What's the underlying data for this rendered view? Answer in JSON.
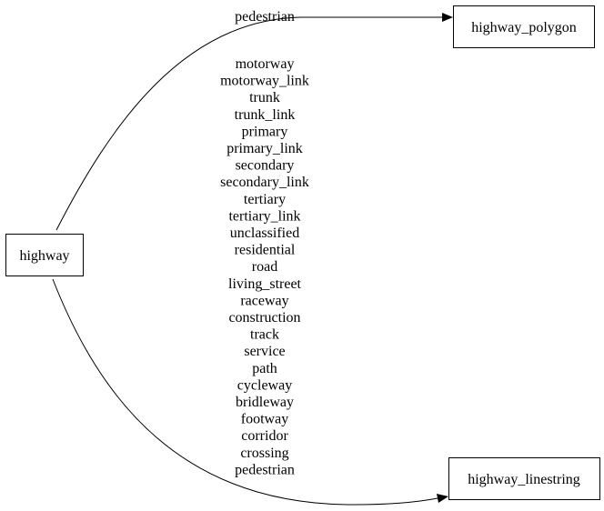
{
  "nodes": {
    "highway": "highway",
    "highway_polygon": "highway_polygon",
    "highway_linestring": "highway_linestring"
  },
  "edges": {
    "to_polygon": {
      "labels": [
        "pedestrian"
      ]
    },
    "to_linestring": {
      "labels": [
        "motorway",
        "motorway_link",
        "trunk",
        "trunk_link",
        "primary",
        "primary_link",
        "secondary",
        "secondary_link",
        "tertiary",
        "tertiary_link",
        "unclassified",
        "residential",
        "road",
        "living_street",
        "raceway",
        "construction",
        "track",
        "service",
        "path",
        "cycleway",
        "bridleway",
        "footway",
        "corridor",
        "crossing",
        "pedestrian"
      ]
    }
  }
}
